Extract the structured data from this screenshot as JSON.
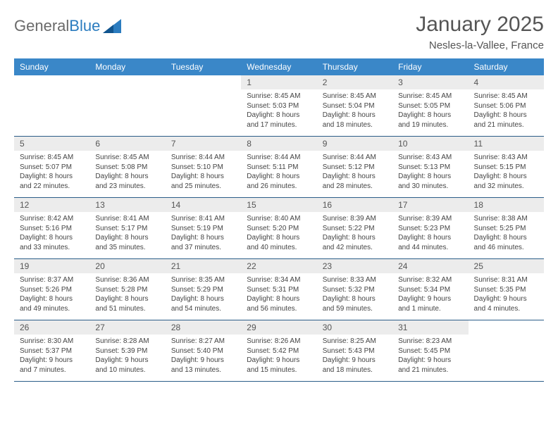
{
  "brand": {
    "part1": "General",
    "part2": "Blue"
  },
  "title": "January 2025",
  "subtitle": "Nesles-la-Vallee, France",
  "colors": {
    "header_bg": "#3a87c8",
    "header_text": "#ffffff",
    "daynum_bg": "#ececec",
    "rule": "#2b5d88",
    "title_text": "#555555",
    "body_text": "#444444",
    "logo_gray": "#6a6a6a",
    "logo_blue": "#2b7cbf"
  },
  "typography": {
    "title_fontsize": 30,
    "subtitle_fontsize": 15,
    "weekday_fontsize": 12,
    "daynum_fontsize": 12,
    "body_fontsize": 10
  },
  "weekdays": [
    "Sunday",
    "Monday",
    "Tuesday",
    "Wednesday",
    "Thursday",
    "Friday",
    "Saturday"
  ],
  "weeks": [
    [
      null,
      null,
      null,
      {
        "n": "1",
        "sunrise": "8:45 AM",
        "sunset": "5:03 PM",
        "daylight": "8 hours and 17 minutes."
      },
      {
        "n": "2",
        "sunrise": "8:45 AM",
        "sunset": "5:04 PM",
        "daylight": "8 hours and 18 minutes."
      },
      {
        "n": "3",
        "sunrise": "8:45 AM",
        "sunset": "5:05 PM",
        "daylight": "8 hours and 19 minutes."
      },
      {
        "n": "4",
        "sunrise": "8:45 AM",
        "sunset": "5:06 PM",
        "daylight": "8 hours and 21 minutes."
      }
    ],
    [
      {
        "n": "5",
        "sunrise": "8:45 AM",
        "sunset": "5:07 PM",
        "daylight": "8 hours and 22 minutes."
      },
      {
        "n": "6",
        "sunrise": "8:45 AM",
        "sunset": "5:08 PM",
        "daylight": "8 hours and 23 minutes."
      },
      {
        "n": "7",
        "sunrise": "8:44 AM",
        "sunset": "5:10 PM",
        "daylight": "8 hours and 25 minutes."
      },
      {
        "n": "8",
        "sunrise": "8:44 AM",
        "sunset": "5:11 PM",
        "daylight": "8 hours and 26 minutes."
      },
      {
        "n": "9",
        "sunrise": "8:44 AM",
        "sunset": "5:12 PM",
        "daylight": "8 hours and 28 minutes."
      },
      {
        "n": "10",
        "sunrise": "8:43 AM",
        "sunset": "5:13 PM",
        "daylight": "8 hours and 30 minutes."
      },
      {
        "n": "11",
        "sunrise": "8:43 AM",
        "sunset": "5:15 PM",
        "daylight": "8 hours and 32 minutes."
      }
    ],
    [
      {
        "n": "12",
        "sunrise": "8:42 AM",
        "sunset": "5:16 PM",
        "daylight": "8 hours and 33 minutes."
      },
      {
        "n": "13",
        "sunrise": "8:41 AM",
        "sunset": "5:17 PM",
        "daylight": "8 hours and 35 minutes."
      },
      {
        "n": "14",
        "sunrise": "8:41 AM",
        "sunset": "5:19 PM",
        "daylight": "8 hours and 37 minutes."
      },
      {
        "n": "15",
        "sunrise": "8:40 AM",
        "sunset": "5:20 PM",
        "daylight": "8 hours and 40 minutes."
      },
      {
        "n": "16",
        "sunrise": "8:39 AM",
        "sunset": "5:22 PM",
        "daylight": "8 hours and 42 minutes."
      },
      {
        "n": "17",
        "sunrise": "8:39 AM",
        "sunset": "5:23 PM",
        "daylight": "8 hours and 44 minutes."
      },
      {
        "n": "18",
        "sunrise": "8:38 AM",
        "sunset": "5:25 PM",
        "daylight": "8 hours and 46 minutes."
      }
    ],
    [
      {
        "n": "19",
        "sunrise": "8:37 AM",
        "sunset": "5:26 PM",
        "daylight": "8 hours and 49 minutes."
      },
      {
        "n": "20",
        "sunrise": "8:36 AM",
        "sunset": "5:28 PM",
        "daylight": "8 hours and 51 minutes."
      },
      {
        "n": "21",
        "sunrise": "8:35 AM",
        "sunset": "5:29 PM",
        "daylight": "8 hours and 54 minutes."
      },
      {
        "n": "22",
        "sunrise": "8:34 AM",
        "sunset": "5:31 PM",
        "daylight": "8 hours and 56 minutes."
      },
      {
        "n": "23",
        "sunrise": "8:33 AM",
        "sunset": "5:32 PM",
        "daylight": "8 hours and 59 minutes."
      },
      {
        "n": "24",
        "sunrise": "8:32 AM",
        "sunset": "5:34 PM",
        "daylight": "9 hours and 1 minute."
      },
      {
        "n": "25",
        "sunrise": "8:31 AM",
        "sunset": "5:35 PM",
        "daylight": "9 hours and 4 minutes."
      }
    ],
    [
      {
        "n": "26",
        "sunrise": "8:30 AM",
        "sunset": "5:37 PM",
        "daylight": "9 hours and 7 minutes."
      },
      {
        "n": "27",
        "sunrise": "8:28 AM",
        "sunset": "5:39 PM",
        "daylight": "9 hours and 10 minutes."
      },
      {
        "n": "28",
        "sunrise": "8:27 AM",
        "sunset": "5:40 PM",
        "daylight": "9 hours and 13 minutes."
      },
      {
        "n": "29",
        "sunrise": "8:26 AM",
        "sunset": "5:42 PM",
        "daylight": "9 hours and 15 minutes."
      },
      {
        "n": "30",
        "sunrise": "8:25 AM",
        "sunset": "5:43 PM",
        "daylight": "9 hours and 18 minutes."
      },
      {
        "n": "31",
        "sunrise": "8:23 AM",
        "sunset": "5:45 PM",
        "daylight": "9 hours and 21 minutes."
      },
      null
    ]
  ],
  "labels": {
    "sunrise": "Sunrise:",
    "sunset": "Sunset:",
    "daylight": "Daylight:"
  }
}
